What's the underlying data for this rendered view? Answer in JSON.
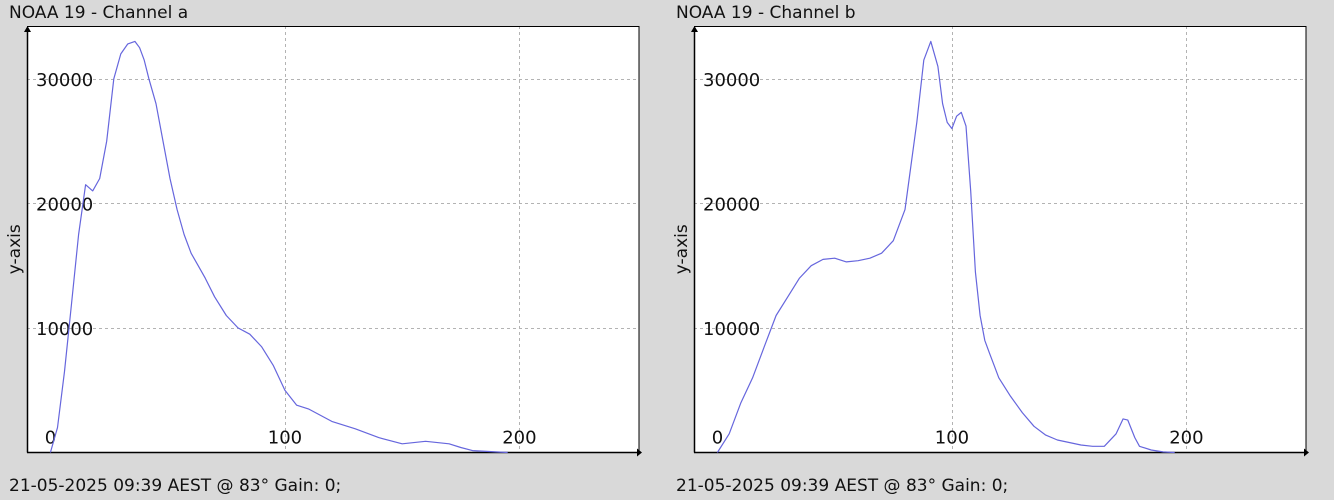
{
  "chart_data": [
    {
      "type": "line",
      "title": "NOAA 19 - Channel a",
      "footer": "21-05-2025 09:39 AEST @ 83° Gain: 0;",
      "ylabel": "y-axis",
      "xlabel": "",
      "xlim": [
        -10,
        251
      ],
      "ylim": [
        0,
        34200
      ],
      "xticks": [
        0,
        100,
        200
      ],
      "yticks": [
        10000,
        20000,
        30000
      ],
      "grid": true,
      "line_color": "#6666dd",
      "series": [
        {
          "x": [
            0,
            3,
            6,
            9,
            12,
            15,
            18,
            21,
            24,
            27,
            30,
            33,
            36,
            38,
            40,
            42,
            45,
            48,
            51,
            54,
            57,
            60,
            63,
            66,
            70,
            75,
            80,
            85,
            90,
            95,
            100,
            105,
            110,
            120,
            130,
            140,
            150,
            160,
            170,
            175,
            180,
            190,
            195
          ],
          "y": [
            0,
            2000,
            6500,
            12000,
            17500,
            21500,
            21000,
            22000,
            25000,
            30000,
            32000,
            32800,
            33000,
            32500,
            31500,
            30000,
            28000,
            25000,
            22000,
            19500,
            17500,
            16000,
            15000,
            14000,
            12500,
            11000,
            10000,
            9500,
            8500,
            7000,
            5000,
            3800,
            3500,
            2500,
            1900,
            1200,
            700,
            900,
            700,
            400,
            150,
            50,
            0
          ]
        }
      ]
    },
    {
      "type": "line",
      "title": "NOAA 19 - Channel b",
      "footer": "21-05-2025 09:39 AEST @ 83° Gain: 0;",
      "ylabel": "y-axis",
      "xlabel": "",
      "xlim": [
        -10,
        251
      ],
      "ylim": [
        0,
        34200
      ],
      "xticks": [
        0,
        100,
        200
      ],
      "yticks": [
        10000,
        20000,
        30000
      ],
      "grid": true,
      "line_color": "#6666dd",
      "series": [
        {
          "x": [
            0,
            5,
            10,
            15,
            20,
            25,
            30,
            35,
            40,
            45,
            50,
            55,
            60,
            65,
            70,
            75,
            80,
            85,
            88,
            91,
            94,
            96,
            98,
            100,
            102,
            104,
            106,
            108,
            110,
            112,
            114,
            116,
            118,
            120,
            125,
            130,
            135,
            140,
            145,
            150,
            155,
            160,
            165,
            170,
            173,
            175,
            178,
            180,
            185,
            190,
            195
          ],
          "y": [
            0,
            1500,
            4000,
            6000,
            8500,
            11000,
            12500,
            14000,
            15000,
            15500,
            15600,
            15300,
            15400,
            15600,
            16000,
            17000,
            19500,
            26500,
            31500,
            33000,
            31000,
            28000,
            26500,
            26000,
            27000,
            27300,
            26200,
            21000,
            14500,
            11000,
            9000,
            8000,
            7000,
            6000,
            4500,
            3200,
            2100,
            1400,
            1000,
            800,
            600,
            500,
            500,
            1500,
            2700,
            2600,
            1200,
            500,
            200,
            50,
            0
          ]
        }
      ]
    }
  ]
}
